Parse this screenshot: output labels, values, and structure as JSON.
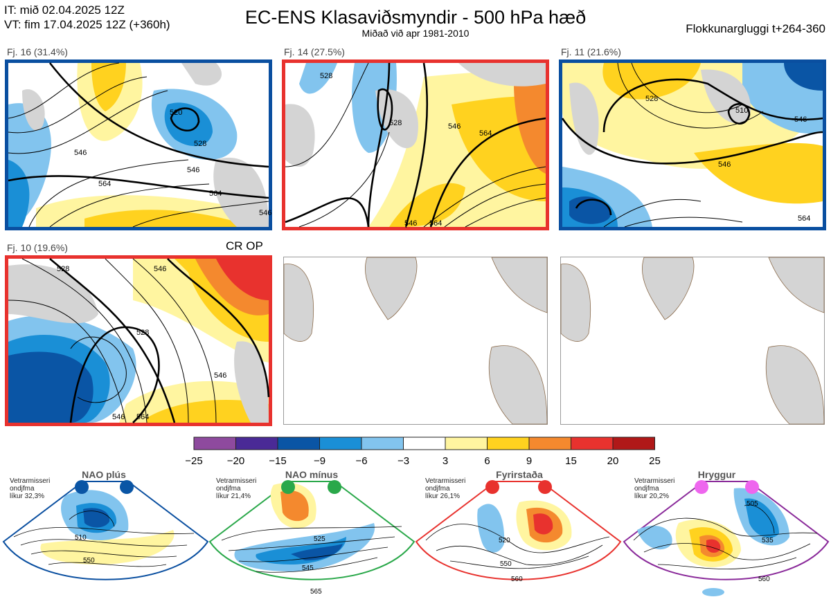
{
  "header": {
    "it_line": "IT: mið 02.04.2025 12Z",
    "vt_line": "VT: fim 17.04.2025 12Z  (+360h)",
    "title": "EC-ENS Klasaviðsmyndir - 500 hPa hæð",
    "subtitle": "Miðað við apr 1981-2010",
    "window": "Flokkunargluggi t+264-360"
  },
  "colors": {
    "blue_border": "#0a4fa0",
    "red_border": "#e8322e",
    "green_border": "#2aa84a",
    "purple_border": "#8a2a9a",
    "land": "#d4d4d4",
    "coast": "#8a6a4a"
  },
  "panels": [
    {
      "label": "Fj. 16 (31.4%)",
      "border": "blue",
      "contours": [
        "520",
        "528",
        "546",
        "546",
        "564",
        "564",
        "546"
      ]
    },
    {
      "label": "Fj. 14 (27.5%)",
      "border": "red",
      "contours": [
        "528",
        "528",
        "546",
        "564",
        "546",
        "564"
      ]
    },
    {
      "label": "Fj. 11 (21.6%)",
      "border": "blue",
      "contours": [
        "528",
        "510",
        "546",
        "546",
        "564"
      ]
    },
    {
      "label": "Fj. 10 (19.6%)",
      "border": "red",
      "tag": "CR OP",
      "contours": [
        "528",
        "528",
        "546",
        "546",
        "564",
        "546"
      ]
    }
  ],
  "chart_data": {
    "type": "heatmap",
    "title": "EC-ENS Klasaviðsmyndir - 500 hPa hæð",
    "colorbar": {
      "ticks": [
        "−25",
        "−20",
        "−15",
        "−9",
        "−6",
        "−3",
        "3",
        "6",
        "9",
        "15",
        "20",
        "25"
      ],
      "bin_colors": [
        "#8e4a9e",
        "#4a2a96",
        "#0a55a5",
        "#1a8fd6",
        "#82c4ee",
        "#ffffff",
        "#fff5a0",
        "#ffd21f",
        "#f4892e",
        "#e8322e",
        "#b01818"
      ]
    },
    "clusters": [
      {
        "name": "Fj. 16",
        "percent": 31.4
      },
      {
        "name": "Fj. 14",
        "percent": 27.5
      },
      {
        "name": "Fj. 11",
        "percent": 21.6
      },
      {
        "name": "Fj. 10",
        "percent": 19.6
      }
    ]
  },
  "regimes": [
    {
      "title": "NAO plús",
      "note": [
        "Vetrarmisseri",
        "ondjfma",
        "líkur 32,3%"
      ],
      "contours": [
        "510",
        "550"
      ]
    },
    {
      "title": "NAO mínus",
      "note": [
        "Vetrarmisseri",
        "ondjfma",
        "líkur 21,4%"
      ],
      "contours": [
        "525",
        "545",
        "565"
      ]
    },
    {
      "title": "Fyrirstaða",
      "note": [
        "Vetrarmisseri",
        "ondjfma",
        "líkur 26,1%"
      ],
      "contours": [
        "520",
        "550",
        "560"
      ]
    },
    {
      "title": "Hryggur",
      "note": [
        "Vetrarmisseri",
        "ondjfma",
        "líkur 20,2%"
      ],
      "contours": [
        "505",
        "535",
        "560"
      ]
    }
  ]
}
